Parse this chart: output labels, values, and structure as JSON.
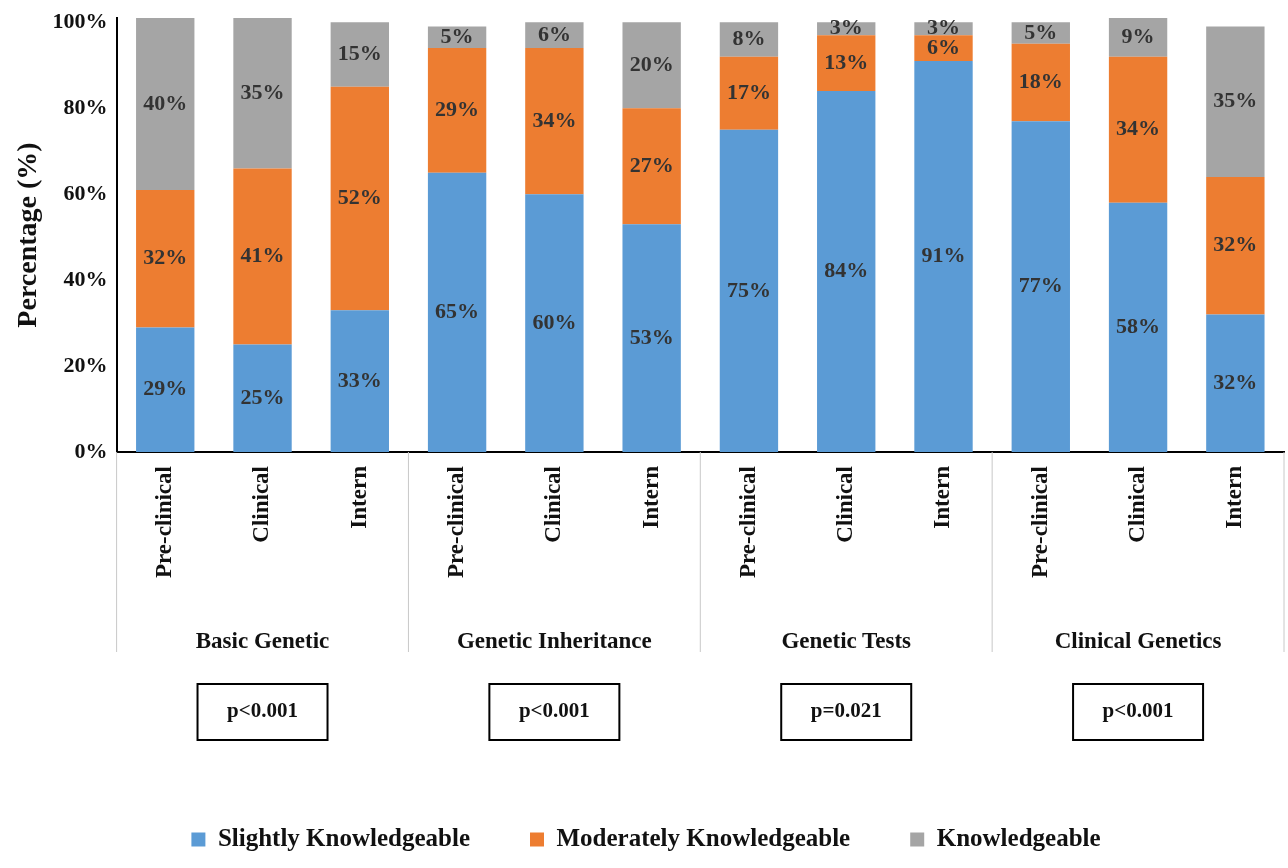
{
  "chart_data": {
    "type": "bar",
    "stacked": true,
    "ylabel": "Percentage (%)",
    "categories": [
      "Pre-clinical",
      "Clinical",
      "Intern",
      "Pre-clinical",
      "Clinical",
      "Intern",
      "Pre-clinical",
      "Clinical",
      "Intern",
      "Pre-clinical",
      "Clinical",
      "Intern"
    ],
    "series": [
      {
        "name": "Slightly Knowledgeable",
        "color": "#5b9bd5",
        "values": [
          29,
          25,
          33,
          65,
          60,
          53,
          75,
          84,
          91,
          77,
          58,
          32
        ],
        "value_labels": [
          "29%",
          "25%",
          "33%",
          "65%",
          "60%",
          "53%",
          "75%",
          "84%",
          "91%",
          "77%",
          "58%",
          "32%"
        ]
      },
      {
        "name": "Moderately Knowledgeable",
        "color": "#ed7d31",
        "values": [
          32,
          41,
          52,
          29,
          34,
          27,
          17,
          13,
          6,
          18,
          34,
          32
        ],
        "value_labels": [
          "32%",
          "41%",
          "52%",
          "29%",
          "34%",
          "27%",
          "17%",
          "13%",
          "6%",
          "18%",
          "34%",
          "32%"
        ]
      },
      {
        "name": "Knowledgeable",
        "color": "#a5a5a5",
        "values": [
          40,
          35,
          15,
          5,
          6,
          20,
          8,
          3,
          3,
          5,
          9,
          35
        ],
        "value_labels": [
          "40%",
          "35%",
          "15%",
          "5%",
          "6%",
          "20%",
          "8%",
          "3%",
          "3%",
          "5%",
          "9%",
          "35%"
        ]
      }
    ],
    "ylim": [
      0,
      101
    ],
    "yticks": [
      {
        "value": 0,
        "label": "0%"
      },
      {
        "value": 20,
        "label": "20%"
      },
      {
        "value": 40,
        "label": "40%"
      },
      {
        "value": 60,
        "label": "60%"
      },
      {
        "value": 80,
        "label": "80%"
      },
      {
        "value": 100,
        "label": "100%"
      }
    ],
    "grid": false,
    "legend": "bottom",
    "annotations": [
      "Basic Genetic",
      "Genetic Inheritance",
      "Genetic Tests",
      "Clinical Genetics",
      "p<0.001",
      "p<0.001",
      "p=0.021",
      "p<0.001"
    ]
  }
}
